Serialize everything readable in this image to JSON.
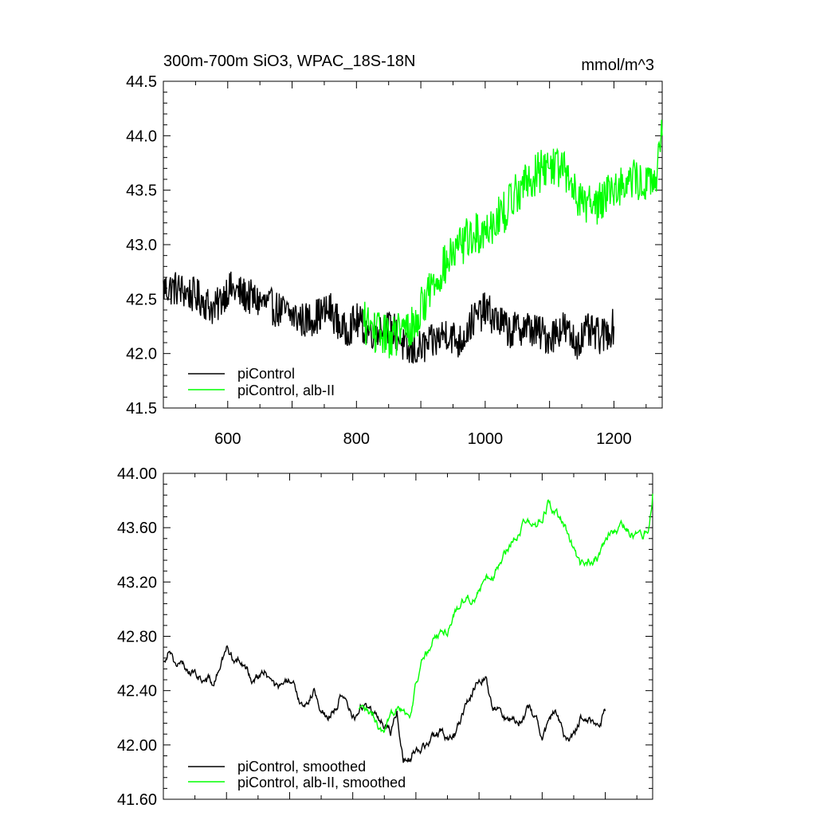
{
  "chart_data": [
    {
      "type": "line",
      "title": "300m-700m SiO3, WPAC_18S-18N",
      "units": "mmol/m^3",
      "xlim": [
        500,
        1275
      ],
      "ylim": [
        41.5,
        44.5
      ],
      "xticks": [
        600,
        800,
        1000,
        1200
      ],
      "yticks": [
        41.5,
        42.0,
        42.5,
        43.0,
        43.5,
        44.0,
        44.5
      ],
      "ytick_labels": [
        "41.5",
        "42.0",
        "42.5",
        "43.0",
        "43.5",
        "44.0",
        "44.5"
      ],
      "xtick_labels": [
        "600",
        "800",
        "1000",
        "1200"
      ],
      "legend_position": "bottom-left",
      "series": [
        {
          "name": "piControl",
          "color": "#000000",
          "x": [
            500,
            520,
            540,
            560,
            580,
            600,
            620,
            640,
            660,
            680,
            700,
            720,
            740,
            760,
            780,
            800,
            820,
            840,
            860,
            880,
            900,
            920,
            940,
            960,
            980,
            1000,
            1020,
            1040,
            1060,
            1080,
            1100,
            1120,
            1140,
            1160,
            1180,
            1200
          ],
          "y": [
            42.6,
            42.6,
            42.55,
            42.5,
            42.4,
            42.6,
            42.55,
            42.5,
            42.45,
            42.4,
            42.35,
            42.3,
            42.35,
            42.4,
            42.2,
            42.3,
            42.2,
            42.25,
            42.2,
            42.0,
            42.05,
            42.1,
            42.2,
            42.1,
            42.3,
            42.4,
            42.3,
            42.2,
            42.25,
            42.2,
            42.15,
            42.25,
            42.1,
            42.2,
            42.15,
            42.25
          ],
          "noise": 0.17
        },
        {
          "name": "piControl, alb-II",
          "color": "#00ff00",
          "x": [
            810,
            830,
            850,
            870,
            890,
            910,
            930,
            950,
            970,
            990,
            1010,
            1030,
            1050,
            1070,
            1090,
            1110,
            1130,
            1150,
            1170,
            1190,
            1210,
            1230,
            1250,
            1265,
            1275
          ],
          "y": [
            42.3,
            42.2,
            42.15,
            42.2,
            42.25,
            42.55,
            42.75,
            42.9,
            43.05,
            43.1,
            43.2,
            43.3,
            43.5,
            43.6,
            43.7,
            43.75,
            43.6,
            43.4,
            43.35,
            43.5,
            43.55,
            43.6,
            43.55,
            43.6,
            44.0
          ],
          "noise": 0.2
        }
      ]
    },
    {
      "type": "line",
      "title": "",
      "xlim": [
        500,
        1275
      ],
      "ylim": [
        41.6,
        44.0
      ],
      "xticks": [
        600,
        800,
        1000,
        1200
      ],
      "yticks": [
        41.6,
        42.0,
        42.4,
        42.8,
        43.2,
        43.6,
        44.0
      ],
      "ytick_labels": [
        "41.60",
        "42.00",
        "42.40",
        "42.80",
        "43.20",
        "43.60",
        "44.00"
      ],
      "legend_position": "bottom-left",
      "series": [
        {
          "name": "piControl, smoothed",
          "color": "#000000",
          "x": [
            500,
            510,
            520,
            540,
            560,
            580,
            600,
            620,
            640,
            660,
            680,
            700,
            720,
            740,
            760,
            780,
            800,
            820,
            840,
            860,
            870,
            880,
            890,
            900,
            920,
            940,
            960,
            980,
            1000,
            1010,
            1020,
            1040,
            1060,
            1080,
            1100,
            1120,
            1140,
            1160,
            1180,
            1200
          ],
          "y": [
            42.6,
            42.75,
            42.6,
            42.55,
            42.5,
            42.45,
            42.7,
            42.6,
            42.5,
            42.55,
            42.4,
            42.45,
            42.3,
            42.4,
            42.2,
            42.35,
            42.2,
            42.3,
            42.2,
            42.1,
            42.25,
            41.9,
            41.9,
            42.0,
            42.0,
            42.1,
            42.05,
            42.3,
            42.5,
            42.55,
            42.3,
            42.2,
            42.2,
            42.25,
            42.1,
            42.25,
            42.0,
            42.2,
            42.15,
            42.25
          ],
          "noise": 0.04
        },
        {
          "name": "piControl, alb-II, smoothed",
          "color": "#00ff00",
          "x": [
            810,
            830,
            850,
            860,
            870,
            880,
            890,
            900,
            910,
            930,
            950,
            970,
            990,
            1010,
            1030,
            1050,
            1070,
            1090,
            1110,
            1120,
            1140,
            1160,
            1170,
            1190,
            1210,
            1230,
            1250,
            1260,
            1270,
            1275
          ],
          "y": [
            42.25,
            42.2,
            42.05,
            42.15,
            42.3,
            42.3,
            42.2,
            42.45,
            42.6,
            42.8,
            42.85,
            43.05,
            43.1,
            43.2,
            43.3,
            43.5,
            43.65,
            43.6,
            43.8,
            43.7,
            43.55,
            43.3,
            43.35,
            43.4,
            43.55,
            43.6,
            43.55,
            43.55,
            43.6,
            43.85
          ],
          "noise": 0.04
        }
      ]
    }
  ]
}
